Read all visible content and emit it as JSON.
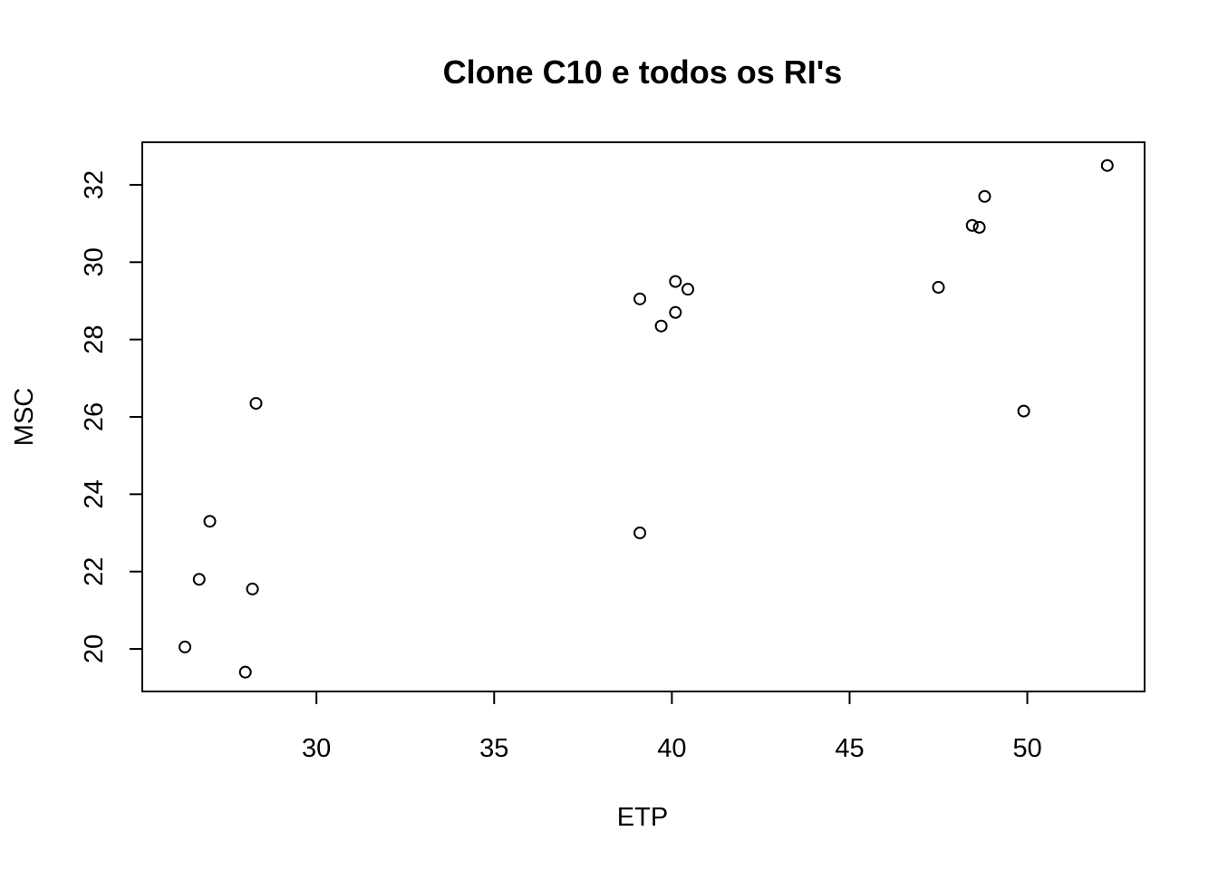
{
  "chart_data": {
    "type": "scatter",
    "title": "Clone C10 e todos os RI's",
    "xlabel": "ETP",
    "ylabel": "MSC",
    "xlim": [
      25.1,
      53.3
    ],
    "ylim": [
      18.9,
      33.1
    ],
    "xticks": [
      30,
      35,
      40,
      45,
      50
    ],
    "yticks": [
      20,
      22,
      24,
      26,
      28,
      30,
      32
    ],
    "grid": false,
    "marker": "open-circle",
    "color": "#000000",
    "points": [
      {
        "x": 26.3,
        "y": 20.05
      },
      {
        "x": 26.7,
        "y": 21.8
      },
      {
        "x": 27.0,
        "y": 23.3
      },
      {
        "x": 28.0,
        "y": 19.4
      },
      {
        "x": 28.2,
        "y": 21.55
      },
      {
        "x": 28.3,
        "y": 26.35
      },
      {
        "x": 39.1,
        "y": 29.05
      },
      {
        "x": 39.1,
        "y": 23.0
      },
      {
        "x": 39.7,
        "y": 28.35
      },
      {
        "x": 40.1,
        "y": 28.7
      },
      {
        "x": 40.1,
        "y": 29.5
      },
      {
        "x": 40.45,
        "y": 29.3
      },
      {
        "x": 47.5,
        "y": 29.35
      },
      {
        "x": 48.45,
        "y": 30.95
      },
      {
        "x": 48.65,
        "y": 30.9
      },
      {
        "x": 48.8,
        "y": 31.7
      },
      {
        "x": 49.9,
        "y": 26.15
      },
      {
        "x": 52.25,
        "y": 32.5
      }
    ]
  }
}
